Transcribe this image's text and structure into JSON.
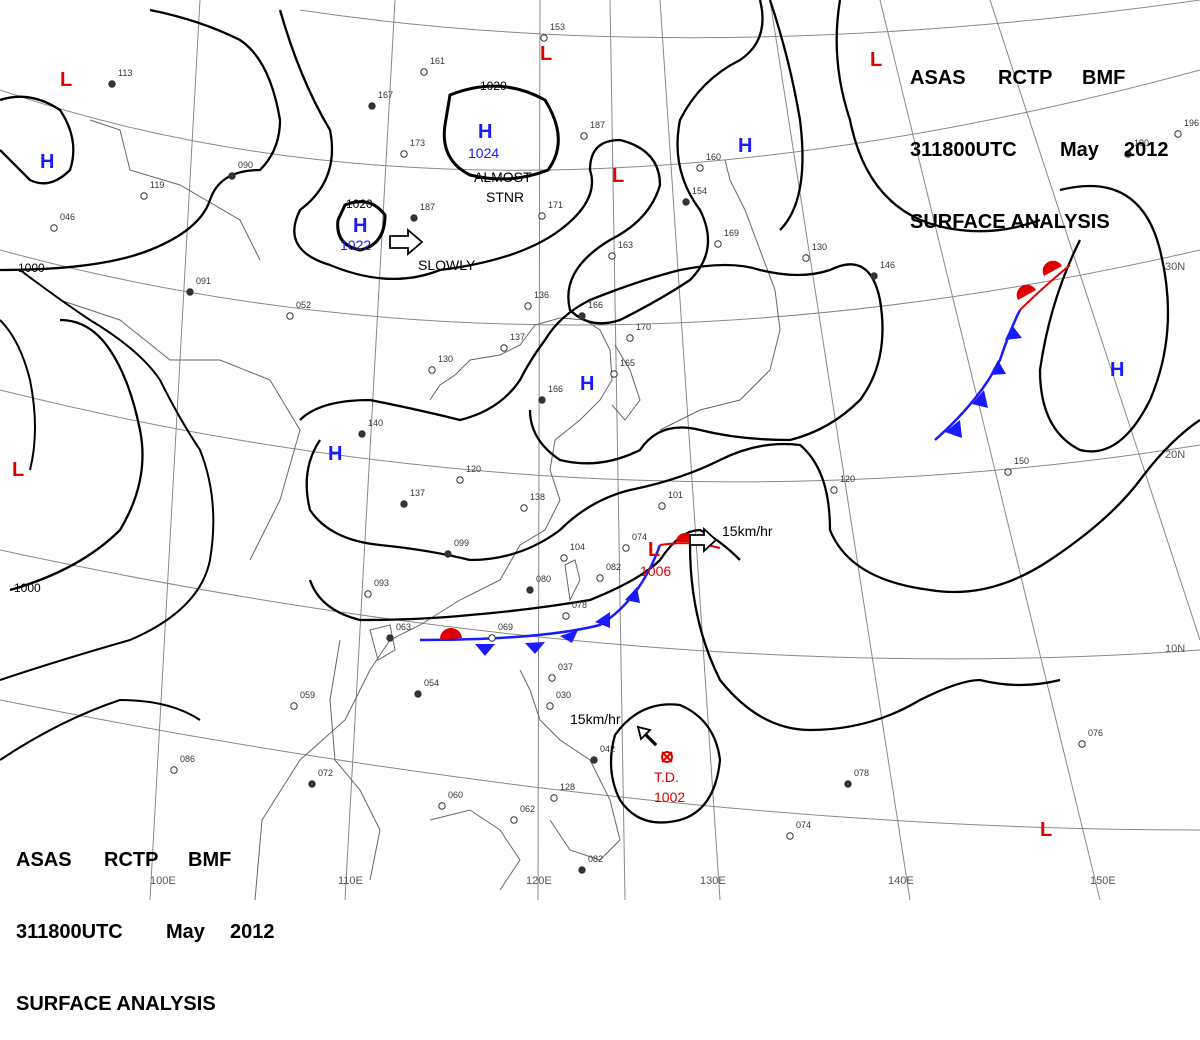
{
  "header": {
    "agency_line": [
      "ASAS",
      "RCTP",
      "BMF"
    ],
    "time_line": [
      "311800UTC",
      "May",
      "2012"
    ],
    "product": "SURFACE ANALYSIS"
  },
  "footer": {
    "agency_line": [
      "ASAS",
      "RCTP",
      "BMF"
    ],
    "time_line": [
      "311800UTC",
      "May",
      "2012"
    ],
    "product": "SURFACE ANALYSIS"
  },
  "longitude_labels": [
    "100E",
    "110E",
    "120E",
    "130E",
    "140E",
    "150E"
  ],
  "latitude_labels": [
    "30N",
    "20N",
    "10N"
  ],
  "isobar_labels": [
    "1020",
    "1020",
    "1000",
    "1000"
  ],
  "pressure_centers": [
    {
      "type": "H",
      "value": "1024",
      "color": "#1a1aff"
    },
    {
      "type": "H",
      "value": "1022",
      "color": "#1a1aff"
    },
    {
      "type": "H",
      "value": "",
      "color": "#1a1aff"
    },
    {
      "type": "H",
      "value": "",
      "color": "#1a1aff"
    },
    {
      "type": "H",
      "value": "",
      "color": "#1a1aff"
    },
    {
      "type": "H",
      "value": "",
      "color": "#1a1aff"
    },
    {
      "type": "H",
      "value": "",
      "color": "#1a1aff"
    },
    {
      "type": "L",
      "value": "1006",
      "color": "#e00000"
    },
    {
      "type": "L",
      "value": "",
      "color": "#e00000"
    },
    {
      "type": "L",
      "value": "",
      "color": "#e00000"
    },
    {
      "type": "L",
      "value": "",
      "color": "#e00000"
    },
    {
      "type": "L",
      "value": "",
      "color": "#e00000"
    },
    {
      "type": "L",
      "value": "",
      "color": "#e00000"
    },
    {
      "type": "L",
      "value": "",
      "color": "#e00000"
    }
  ],
  "tropical_depression": {
    "label": "T.D.",
    "pressure": "1002",
    "color": "#e00000"
  },
  "motion_notes": [
    "ALMOST",
    "STNR",
    "SLOWLY",
    "15km/hr",
    "15km/hr"
  ],
  "station_samples": [
    "113",
    "161",
    "153",
    "167",
    "187",
    "173",
    "090",
    "119",
    "046",
    "187",
    "171",
    "160",
    "154",
    "169",
    "130",
    "146",
    "163",
    "136",
    "166",
    "170",
    "165",
    "166",
    "137",
    "130",
    "140",
    "120",
    "138",
    "137",
    "101",
    "074",
    "099",
    "104",
    "082",
    "080",
    "078",
    "093",
    "063",
    "069",
    "037",
    "054",
    "059",
    "030",
    "042",
    "128",
    "086",
    "072",
    "060",
    "062",
    "082",
    "120",
    "150",
    "078",
    "074",
    "076",
    "190",
    "196",
    "052",
    "091"
  ],
  "colors": {
    "isobar": "#000000",
    "high": "#1a1aff",
    "low": "#e00000",
    "cold_front": "#1a1aff",
    "warm_front": "#e00000",
    "grid": "#888888",
    "coast": "#666666"
  }
}
